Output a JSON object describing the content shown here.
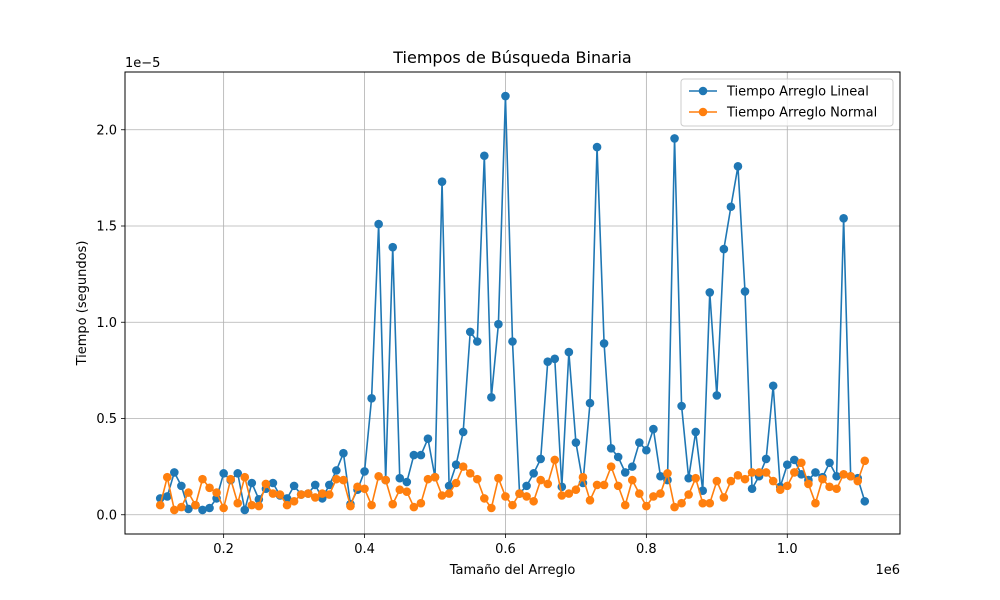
{
  "chart_data": {
    "type": "line",
    "title": "Tiempos de Búsqueda Binaria",
    "xlabel": "Tamaño del Arreglo",
    "ylabel": "Tiempo (segundos)",
    "x_offset_label": "1e6",
    "y_offset_label": "1e−5",
    "xlim": [
      60000,
      1160000
    ],
    "ylim": [
      -1e-06,
      2.3e-05
    ],
    "xticks": [
      200000,
      400000,
      600000,
      800000,
      1000000
    ],
    "xtick_labels": [
      "0.2",
      "0.4",
      "0.6",
      "0.8",
      "1.0"
    ],
    "yticks": [
      0,
      5e-06,
      1e-05,
      1.5e-05,
      2e-05
    ],
    "ytick_labels": [
      "0.0",
      "0.5",
      "1.0",
      "1.5",
      "2.0"
    ],
    "grid": true,
    "legend_position": "upper-right",
    "colors": {
      "series_1": "#1f77b4",
      "series_2": "#ff7f0e",
      "grid": "#b0b0b0"
    },
    "x": [
      110000,
      120000,
      130000,
      140000,
      150000,
      160000,
      170000,
      180000,
      190000,
      200000,
      210000,
      220000,
      230000,
      240000,
      250000,
      260000,
      270000,
      280000,
      290000,
      300000,
      310000,
      320000,
      330000,
      340000,
      350000,
      360000,
      370000,
      380000,
      390000,
      400000,
      410000,
      420000,
      430000,
      440000,
      450000,
      460000,
      470000,
      480000,
      490000,
      500000,
      510000,
      520000,
      530000,
      540000,
      550000,
      560000,
      570000,
      580000,
      590000,
      600000,
      610000,
      620000,
      630000,
      640000,
      650000,
      660000,
      670000,
      680000,
      690000,
      700000,
      710000,
      720000,
      730000,
      740000,
      750000,
      760000,
      770000,
      780000,
      790000,
      800000,
      810000,
      820000,
      830000,
      840000,
      850000,
      860000,
      870000,
      880000,
      890000,
      900000,
      910000,
      920000,
      930000,
      940000,
      950000,
      960000,
      970000,
      980000,
      990000,
      1000000,
      1010000,
      1020000,
      1030000,
      1040000,
      1050000,
      1060000,
      1070000,
      1080000,
      1090000,
      1100000,
      1110000
    ],
    "series": [
      {
        "name": "Tiempo Arreglo Lineal",
        "values": [
          8.5e-07,
          9.5e-07,
          2.2e-06,
          1.5e-06,
          3e-07,
          5e-07,
          2.5e-07,
          3.5e-07,
          8.5e-07,
          2.15e-06,
          1.8e-06,
          2.15e-06,
          2.5e-07,
          1.65e-06,
          8e-07,
          1.35e-06,
          1.65e-06,
          1e-06,
          8.5e-07,
          1.5e-06,
          1.05e-06,
          1.1e-06,
          1.55e-06,
          8.5e-07,
          1.55e-06,
          2.3e-06,
          3.2e-06,
          5.5e-07,
          1.3e-06,
          2.25e-06,
          6.05e-06,
          1.51e-05,
          1.8e-06,
          1.39e-05,
          1.9e-06,
          1.7e-06,
          3.1e-06,
          3.1e-06,
          3.95e-06,
          1.95e-06,
          1.73e-05,
          1.5e-06,
          2.6e-06,
          4.3e-06,
          9.5e-06,
          9e-06,
          1.865e-05,
          6.1e-06,
          9.9e-06,
          2.175e-05,
          9e-06,
          1.1e-06,
          1.5e-06,
          2.15e-06,
          2.9e-06,
          7.95e-06,
          8.1e-06,
          1.45e-06,
          8.45e-06,
          3.75e-06,
          1.65e-06,
          5.8e-06,
          1.91e-05,
          8.9e-06,
          3.45e-06,
          3e-06,
          2.2e-06,
          2.5e-06,
          3.75e-06,
          3.35e-06,
          4.45e-06,
          2e-06,
          1.8e-06,
          1.955e-05,
          5.65e-06,
          1.9e-06,
          4.3e-06,
          1.25e-06,
          1.155e-05,
          6.2e-06,
          1.38e-05,
          1.6e-05,
          1.81e-05,
          1.16e-05,
          1.35e-06,
          2e-06,
          2.9e-06,
          6.7e-06,
          1.45e-06,
          2.6e-06,
          2.85e-06,
          2.1e-06,
          1.8e-06,
          2.2e-06,
          1.95e-06,
          2.7e-06,
          2e-06,
          1.54e-05,
          2e-06,
          1.9e-06,
          7e-07
        ]
      },
      {
        "name": "Tiempo Arreglo Normal",
        "values": [
          5e-07,
          1.95e-06,
          2.5e-07,
          4e-07,
          1.15e-06,
          5e-07,
          1.85e-06,
          1.4e-06,
          1.15e-06,
          3.5e-07,
          1.85e-06,
          6e-07,
          1.95e-06,
          5e-07,
          4.5e-07,
          1.6e-06,
          1.1e-06,
          1.05e-06,
          5e-07,
          7e-07,
          1.05e-06,
          1.1e-06,
          9e-07,
          1.1e-06,
          1.05e-06,
          1.85e-06,
          1.8e-06,
          4.5e-07,
          1.45e-06,
          1.35e-06,
          5e-07,
          2e-06,
          1.8e-06,
          5.5e-07,
          1.3e-06,
          1.2e-06,
          4e-07,
          6e-07,
          1.85e-06,
          1.95e-06,
          1e-06,
          1.1e-06,
          1.65e-06,
          2.5e-06,
          2.15e-06,
          1.85e-06,
          8.5e-07,
          3.5e-07,
          1.9e-06,
          9.5e-07,
          5e-07,
          1.1e-06,
          9.5e-07,
          7e-07,
          1.8e-06,
          1.6e-06,
          2.85e-06,
          1e-06,
          1.1e-06,
          1.3e-06,
          1.95e-06,
          7.5e-07,
          1.55e-06,
          1.55e-06,
          2.5e-06,
          1.5e-06,
          5e-07,
          1.8e-06,
          1.1e-06,
          4.5e-07,
          9.5e-07,
          1.1e-06,
          2.15e-06,
          4e-07,
          6e-07,
          1.05e-06,
          1.9e-06,
          6e-07,
          6e-07,
          1.75e-06,
          9e-07,
          1.75e-06,
          2.05e-06,
          1.85e-06,
          2.2e-06,
          2.2e-06,
          2.2e-06,
          1.75e-06,
          1.3e-06,
          1.5e-06,
          2.2e-06,
          2.7e-06,
          1.6e-06,
          6e-07,
          1.85e-06,
          1.45e-06,
          1.35e-06,
          2.1e-06,
          2e-06,
          1.75e-06,
          2.8e-06
        ]
      }
    ]
  }
}
